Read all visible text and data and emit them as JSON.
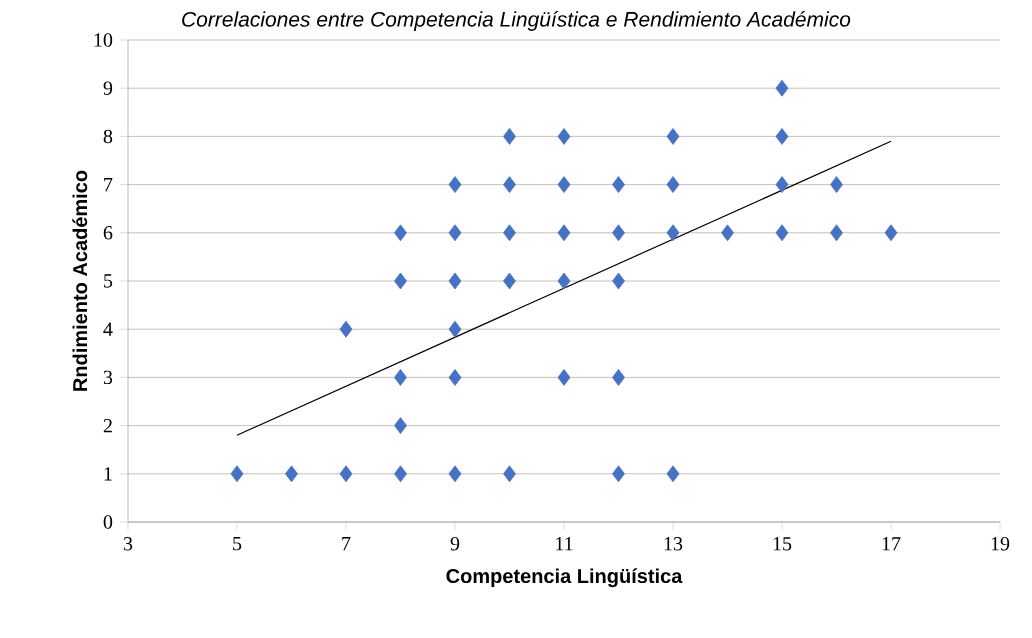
{
  "chart_data": {
    "type": "scatter",
    "title": "Correlaciones entre Competencia Lingüística e Rendimiento Académico",
    "xlabel": "Competencia Lingüística",
    "ylabel": "Rndimiento Académico",
    "xlim": [
      3,
      19
    ],
    "ylim": [
      0,
      10
    ],
    "xticks": [
      3,
      5,
      7,
      9,
      11,
      13,
      15,
      17,
      19
    ],
    "yticks": [
      0,
      1,
      2,
      3,
      4,
      5,
      6,
      7,
      8,
      9,
      10
    ],
    "grid": "y",
    "marker": "diamond",
    "series": [
      {
        "type": "scatter",
        "color": "#4472c4",
        "x": [
          5,
          6,
          7,
          7,
          8,
          8,
          8,
          8,
          8,
          9,
          9,
          9,
          9,
          9,
          9,
          10,
          10,
          10,
          10,
          10,
          11,
          11,
          11,
          11,
          11,
          12,
          12,
          12,
          12,
          12,
          13,
          13,
          13,
          13,
          14,
          15,
          15,
          15,
          15,
          16,
          16,
          17
        ],
        "values": [
          1,
          1,
          1,
          4,
          1,
          2,
          3,
          5,
          6,
          1,
          3,
          4,
          5,
          6,
          7,
          1,
          5,
          6,
          7,
          8,
          3,
          5,
          6,
          7,
          8,
          1,
          3,
          5,
          6,
          7,
          1,
          6,
          7,
          8,
          6,
          6,
          7,
          8,
          9,
          6,
          7,
          6
        ]
      },
      {
        "type": "line",
        "color": "#000000",
        "marker": "none",
        "x": [
          5,
          17
        ],
        "values": [
          1.8,
          7.9
        ]
      }
    ]
  }
}
